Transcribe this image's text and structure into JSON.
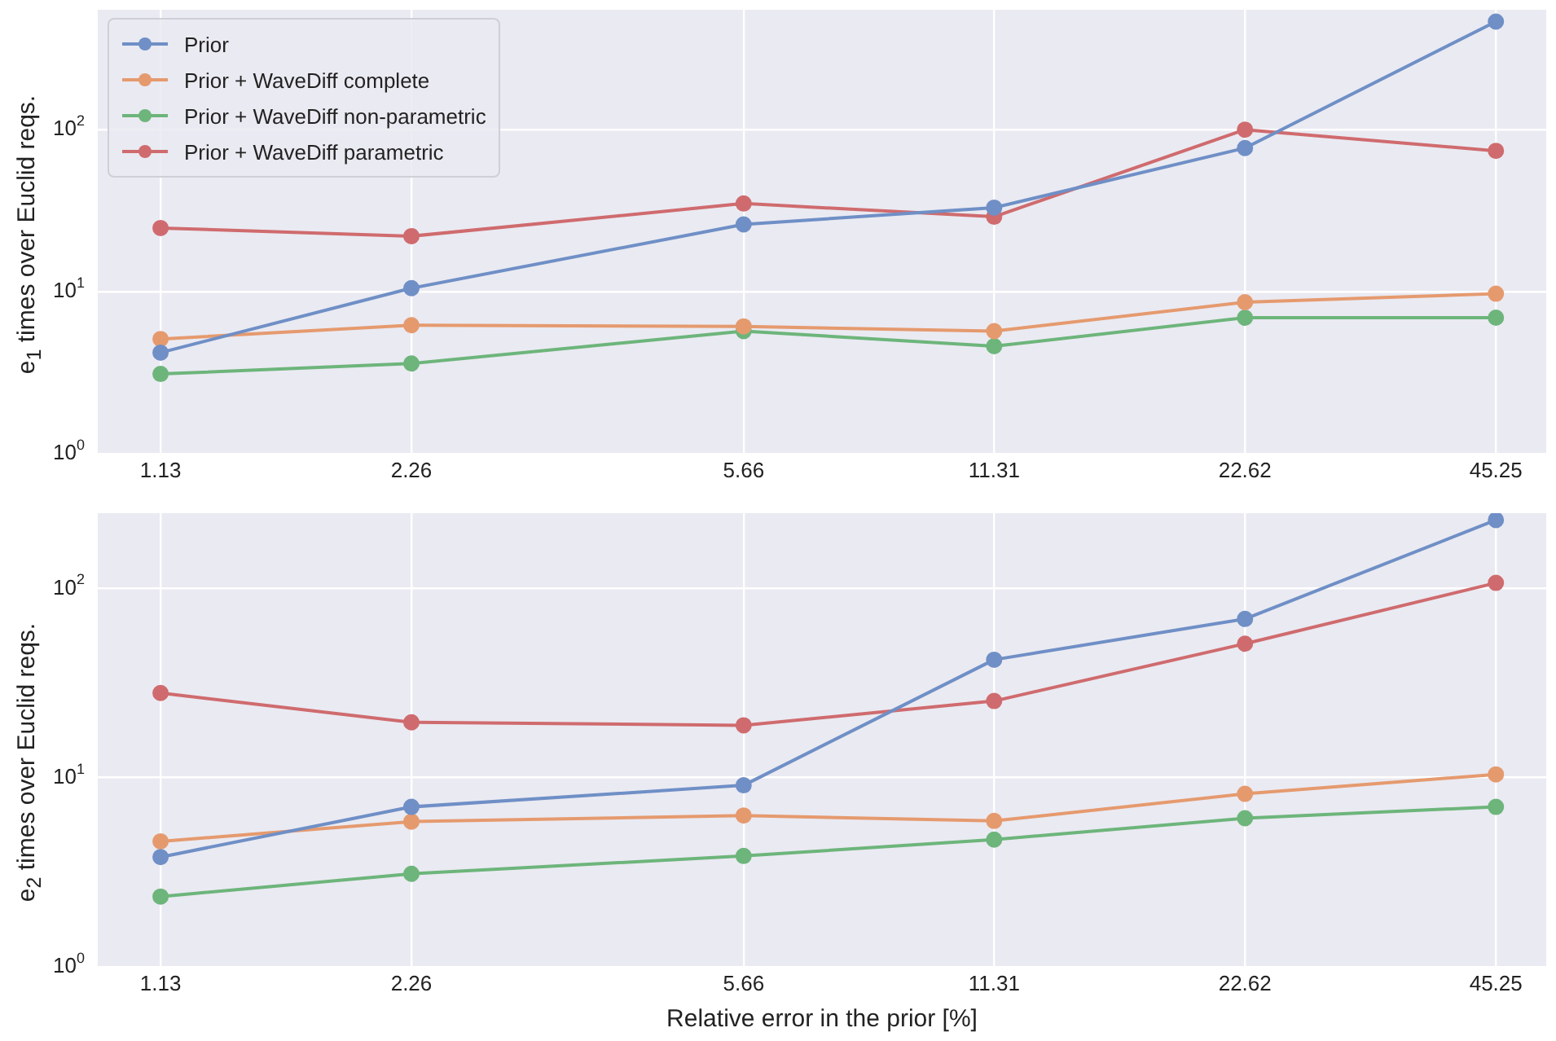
{
  "chart_data": [
    {
      "type": "line",
      "ylabel": "e$_{1}$ times over Euclid reqs.",
      "x": [
        1.13,
        2.26,
        5.66,
        11.31,
        22.62,
        45.25
      ],
      "xlim": [
        0.95,
        52
      ],
      "xticks": [
        1.13,
        2.26,
        5.66,
        11.31,
        22.62,
        45.25
      ],
      "ylim": [
        1,
        550
      ],
      "yticks": [
        {
          "value": 1,
          "label": "10$^{0}$"
        },
        {
          "value": 10,
          "label": "10$^{1}$"
        },
        {
          "value": 100,
          "label": "10$^{2}$"
        }
      ],
      "log": "xy",
      "grid": true,
      "legend": "top left",
      "marker": "circle",
      "line_style": "solid",
      "series": [
        {
          "name": "Prior",
          "color": "#6f8fc6",
          "values": [
            4.2,
            10.5,
            26,
            33,
            77,
            465
          ]
        },
        {
          "name": "Prior + WaveDiff complete",
          "color": "#e59a6e",
          "values": [
            5.1,
            6.2,
            6.1,
            5.7,
            8.6,
            9.7
          ]
        },
        {
          "name": "Prior + WaveDiff non-parametric",
          "color": "#6db57b",
          "values": [
            3.1,
            3.6,
            5.7,
            4.6,
            6.9,
            6.9
          ]
        },
        {
          "name": "Prior + WaveDiff parametric",
          "color": "#cf6b6e",
          "values": [
            24.7,
            22,
            35,
            29,
            100,
            74
          ]
        }
      ]
    },
    {
      "type": "line",
      "xlabel": "Relative error in the prior [%]",
      "ylabel": "e$_{2}$ times over Euclid reqs.",
      "x": [
        1.13,
        2.26,
        5.66,
        11.31,
        22.62,
        45.25
      ],
      "xlim": [
        0.95,
        52
      ],
      "xticks": [
        1.13,
        2.26,
        5.66,
        11.31,
        22.62,
        45.25
      ],
      "ylim": [
        1,
        250
      ],
      "yticks": [
        {
          "value": 1,
          "label": "10$^{0}$"
        },
        {
          "value": 10,
          "label": "10$^{1}$"
        },
        {
          "value": 100,
          "label": "10$^{2}$"
        }
      ],
      "log": "xy",
      "grid": true,
      "marker": "circle",
      "line_style": "solid",
      "series": [
        {
          "color": "#6f8fc6",
          "values": [
            3.8,
            7.0,
            9.1,
            42,
            69,
            230
          ]
        },
        {
          "color": "#e59a6e",
          "values": [
            4.6,
            5.85,
            6.3,
            5.9,
            8.2,
            10.4
          ]
        },
        {
          "color": "#6db57b",
          "values": [
            2.35,
            3.1,
            3.85,
            4.7,
            6.1,
            7.0
          ]
        },
        {
          "color": "#cf6b6e",
          "values": [
            28,
            19.6,
            18.9,
            25.4,
            51,
            107
          ]
        }
      ]
    }
  ]
}
